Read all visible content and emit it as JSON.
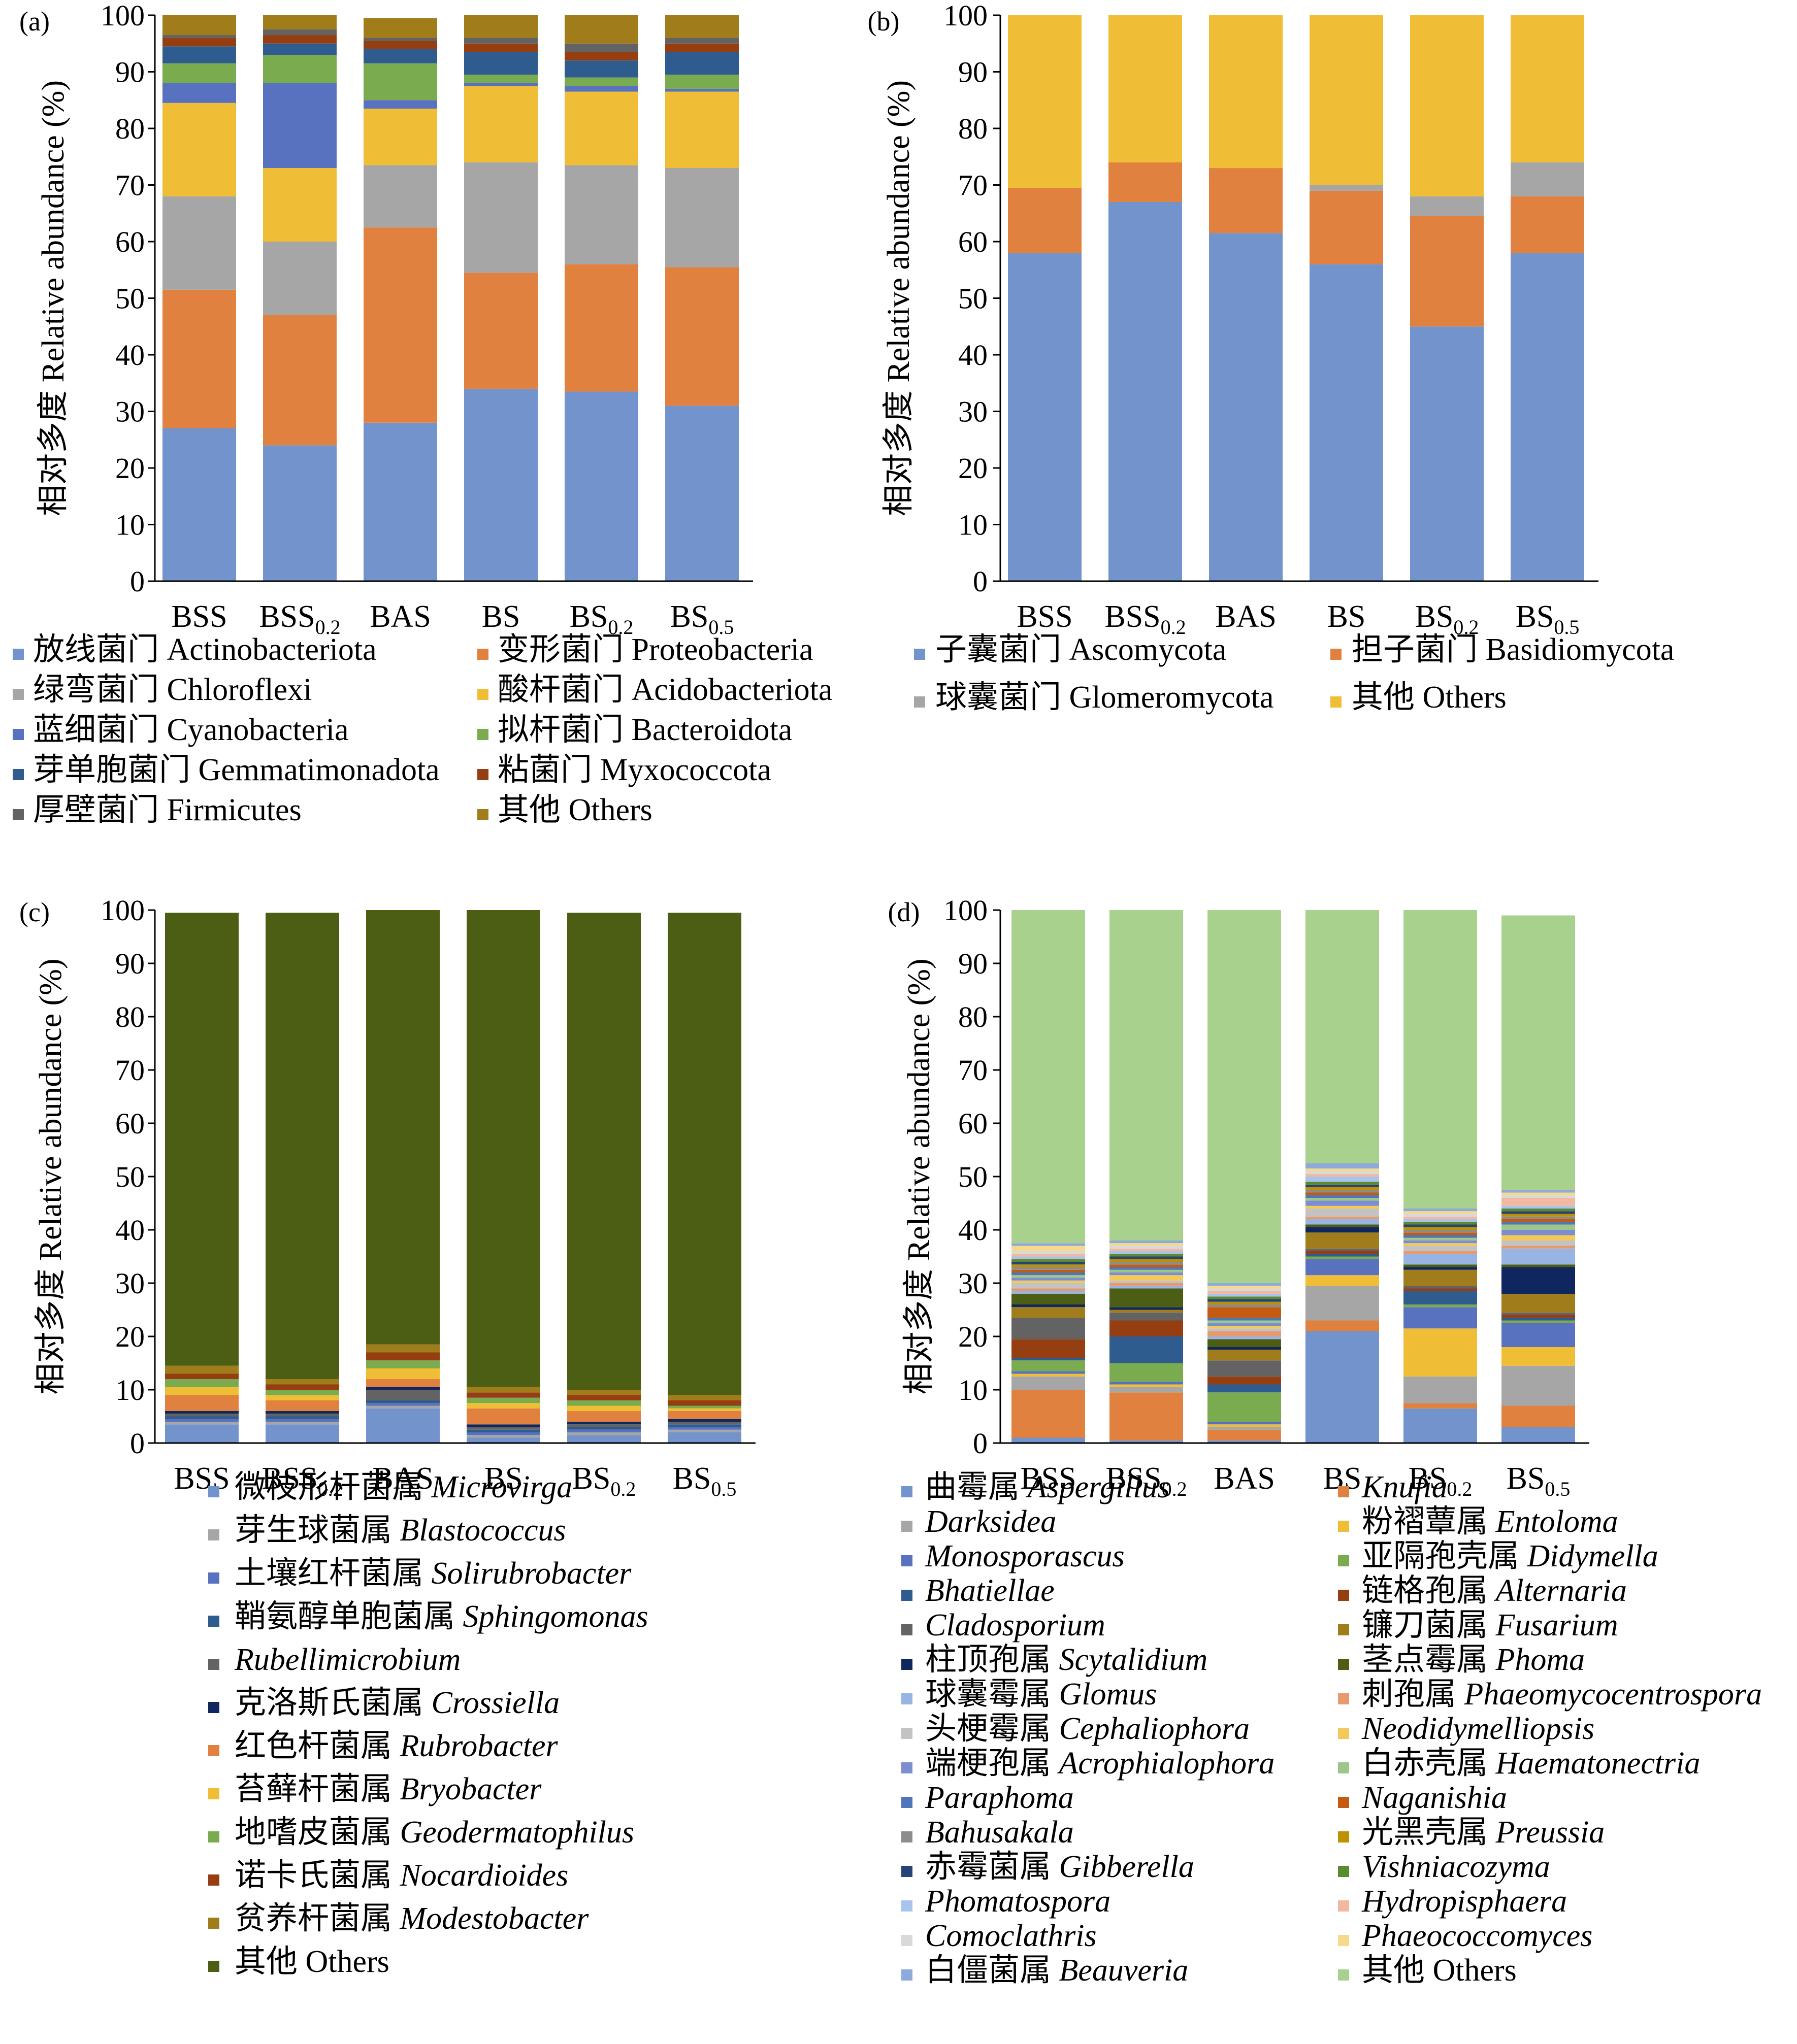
{
  "chart_data": [
    {
      "panel_label": "(a)",
      "type": "bar",
      "stacked": true,
      "categories": [
        "BSS",
        "BSS",
        "BAS",
        "BS",
        "BS",
        "BS"
      ],
      "category_subscripts": [
        "",
        "0.2",
        "",
        "",
        "0.2",
        "0.5"
      ],
      "ylabel": "相对多度 Relative abundance (%)",
      "ylim": [
        0,
        100
      ],
      "yticks": [
        "0",
        "10",
        "20",
        "30",
        "40",
        "50",
        "60",
        "70",
        "80",
        "90",
        "100"
      ],
      "legend_columns": 2,
      "series": [
        {
          "name": "放线菌门 Actinobacteriota",
          "color": "#7293cb",
          "values": [
            27,
            24,
            28,
            34,
            33.5,
            31
          ]
        },
        {
          "name": "变形菌门  Proteobacteria",
          "color": "#e1813f",
          "values": [
            24.5,
            23,
            34.5,
            20.5,
            22.5,
            24.5
          ]
        },
        {
          "name": "绿弯菌门  Chloroflexi",
          "color": "#a6a6a6",
          "values": [
            16.5,
            13,
            11,
            19.5,
            17.5,
            17.5
          ]
        },
        {
          "name": "酸杆菌门 Acidobacteriota",
          "color": "#f0bd36",
          "values": [
            16.5,
            13,
            10,
            13.5,
            13,
            13.5
          ]
        },
        {
          "name": "蓝细菌门 Cyanobacteria",
          "color": "#5872c0",
          "values": [
            3.5,
            15,
            1.5,
            0.5,
            1,
            0.5
          ]
        },
        {
          "name": "拟杆菌门 Bacteroidota",
          "color": "#7aab4f",
          "values": [
            3.5,
            5,
            6.5,
            1.5,
            1.5,
            2.5
          ]
        },
        {
          "name": "芽单胞菌门 Gemmatimonadota",
          "color": "#2f5c8f",
          "values": [
            3,
            2,
            2.5,
            4,
            3,
            4
          ]
        },
        {
          "name": "粘菌门 Myxococcota",
          "color": "#953e12",
          "values": [
            1.5,
            1.5,
            1.5,
            1.5,
            1.5,
            1.5
          ]
        },
        {
          "name": "厚壁菌门  Firmicutes",
          "color": "#636363",
          "values": [
            0.5,
            1,
            0.5,
            1,
            1.5,
            1
          ]
        },
        {
          "name": "其他 Others",
          "color": "#a07c1b",
          "values": [
            4,
            2.5,
            3.5,
            4,
            5,
            4
          ]
        }
      ]
    },
    {
      "panel_label": "(b)",
      "type": "bar",
      "stacked": true,
      "categories": [
        "BSS",
        "BSS",
        "BAS",
        "BS",
        "BS",
        "BS"
      ],
      "category_subscripts": [
        "",
        "0.2",
        "",
        "",
        "0.2",
        "0.5"
      ],
      "ylabel": "相对多度 Relative abundance (%)",
      "ylim": [
        0,
        100
      ],
      "yticks": [
        "0",
        "10",
        "20",
        "30",
        "40",
        "50",
        "60",
        "70",
        "80",
        "90",
        "100"
      ],
      "legend_columns": 2,
      "series": [
        {
          "name": "子囊菌门 Ascomycota",
          "color": "#7293cb",
          "values": [
            58,
            67,
            61.5,
            56,
            45,
            58
          ]
        },
        {
          "name": "担子菌门 Basidiomycota",
          "color": "#e1813f",
          "values": [
            11.5,
            7,
            11.5,
            13,
            19.5,
            10
          ]
        },
        {
          "name": "球囊菌门 Glomeromycota",
          "color": "#a6a6a6",
          "values": [
            0,
            0,
            0,
            1,
            3.5,
            6
          ]
        },
        {
          "name": "其他 Others",
          "color": "#f0bd36",
          "values": [
            30.5,
            26,
            27,
            30,
            32,
            26
          ]
        }
      ]
    },
    {
      "panel_label": "(c)",
      "type": "bar",
      "stacked": true,
      "categories": [
        "BSS",
        "BSS",
        "BAS",
        "BS",
        "BS",
        "BS"
      ],
      "category_subscripts": [
        "",
        "0.2",
        "",
        "",
        "0.2",
        "0.5"
      ],
      "ylabel": "相对多度 Relative abundance (%)",
      "ylim": [
        0,
        100
      ],
      "yticks": [
        "0",
        "10",
        "20",
        "30",
        "40",
        "50",
        "60",
        "70",
        "80",
        "90",
        "100"
      ],
      "legend_columns": 1,
      "series": [
        {
          "name": "微枝形杆菌属 ",
          "italic": "Microvirga",
          "color": "#7293cb",
          "values": [
            3.5,
            3.5,
            6.5,
            1,
            1.5,
            2
          ]
        },
        {
          "name": "芽生球菌属 ",
          "italic": "Blastococcus",
          "color": "#a6a6a6",
          "values": [
            0.5,
            0.5,
            0.5,
            0.5,
            0.5,
            0.5
          ]
        },
        {
          "name": "土壤红杆菌属 ",
          "italic": "Solirubrobacter",
          "color": "#5872c0",
          "values": [
            0.5,
            0.5,
            0.5,
            0.5,
            0.5,
            0.5
          ]
        },
        {
          "name": "鞘氨醇单胞菌属 ",
          "italic": "Sphingomonas",
          "color": "#2f5c8f",
          "values": [
            0.5,
            0.5,
            0.5,
            0.5,
            0.5,
            0.5
          ]
        },
        {
          "name": "",
          "italic": "Rubellimicrobium",
          "color": "#636363",
          "values": [
            0.5,
            0.5,
            2,
            0.5,
            0.5,
            0.5
          ]
        },
        {
          "name": "克洛斯氏菌属 ",
          "italic": "Crossiella",
          "color": "#10265e",
          "values": [
            0.5,
            0.5,
            0.5,
            0.5,
            0.5,
            0.5
          ]
        },
        {
          "name": "红色杆菌属 ",
          "italic": "Rubrobacter",
          "color": "#e1813f",
          "values": [
            3,
            2,
            1.5,
            3,
            2,
            1.5
          ]
        },
        {
          "name": "苔藓杆菌属 ",
          "italic": "Bryobacter",
          "color": "#f0bd36",
          "values": [
            1.5,
            1,
            2,
            1,
            1,
            0.5
          ]
        },
        {
          "name": "地嗜皮菌属 ",
          "italic": "Geodermatophilus",
          "color": "#7aab4f",
          "values": [
            1.5,
            1,
            1.5,
            1,
            1,
            0.5
          ]
        },
        {
          "name": "诺卡氏菌属 ",
          "italic": "Nocardioides",
          "color": "#953e12",
          "values": [
            1,
            1,
            1.5,
            1,
            1,
            1
          ]
        },
        {
          "name": "贫养杆菌属 ",
          "italic": "Modestobacter",
          "color": "#a07c1b",
          "values": [
            1.5,
            1,
            1.5,
            1,
            1,
            1
          ]
        },
        {
          "name": "其他 Others",
          "italic": "",
          "color": "#4b5e13",
          "values": [
            85,
            87.5,
            81.5,
            89.5,
            89.5,
            90.5
          ]
        }
      ]
    },
    {
      "panel_label": "(d)",
      "type": "bar",
      "stacked": true,
      "categories": [
        "BSS",
        "BSS",
        "BAS",
        "BS",
        "BS",
        "BS"
      ],
      "category_subscripts": [
        "",
        "0.2",
        "",
        "",
        "0.2",
        "0.5"
      ],
      "ylabel": "相对多度  Relative abundance (%)",
      "ylim": [
        0,
        100
      ],
      "yticks": [
        "0",
        "10",
        "20",
        "30",
        "40",
        "50",
        "60",
        "70",
        "80",
        "90",
        "100"
      ],
      "legend_columns": 2,
      "series": [
        {
          "name": "曲霉属 ",
          "italic": "Aspergillus",
          "color": "#7293cb",
          "values": [
            1,
            0.5,
            0.5,
            21,
            6.5,
            3
          ]
        },
        {
          "name": "",
          "italic": "Knufia",
          "color": "#e1813f",
          "values": [
            9,
            9,
            2,
            2,
            1,
            4
          ]
        },
        {
          "name": "",
          "italic": "Darksidea",
          "color": "#a6a6a6",
          "values": [
            2.5,
            1,
            0.5,
            6.5,
            5,
            7.5
          ]
        },
        {
          "name": "粉褶蕈属 ",
          "italic": "Entoloma",
          "color": "#f0bd36",
          "values": [
            0.5,
            0.5,
            0.5,
            2,
            9,
            3.5
          ]
        },
        {
          "name": "",
          "italic": "Monosporascus",
          "color": "#5872c0",
          "values": [
            0.5,
            0.5,
            0.5,
            3,
            4,
            4.5
          ]
        },
        {
          "name": "亚隔孢壳属 ",
          "italic": "Didymella",
          "color": "#7aab4f",
          "values": [
            2,
            3.5,
            5.5,
            0.5,
            0.5,
            0.5
          ]
        },
        {
          "name": "",
          "italic": "Bhatiellae",
          "color": "#2f5c8f",
          "values": [
            0.5,
            5,
            1.5,
            0.5,
            2.5,
            0.5
          ]
        },
        {
          "name": "链格孢属 ",
          "italic": "Alternaria",
          "color": "#953e12",
          "values": [
            3.5,
            3,
            1.5,
            0.5,
            0.5,
            0.5
          ]
        },
        {
          "name": "",
          "italic": "Cladosporium",
          "color": "#636363",
          "values": [
            4,
            1.5,
            3,
            0.5,
            0.5,
            0.5
          ]
        },
        {
          "name": "镰刀菌属 ",
          "italic": "Fusarium",
          "color": "#a07c1b",
          "values": [
            2,
            0.5,
            2,
            3,
            3,
            3.5
          ]
        },
        {
          "name": "柱顶孢属 ",
          "italic": "Scytalidium",
          "color": "#10265e",
          "values": [
            0.5,
            0.5,
            0.5,
            1,
            0.5,
            5
          ]
        },
        {
          "name": "茎点霉属 ",
          "italic": "Phoma",
          "color": "#4b5e13",
          "values": [
            2,
            3.5,
            1.5,
            0.5,
            0.5,
            0.5
          ]
        },
        {
          "name": "球囊霉属 ",
          "italic": "Glomus",
          "color": "#97b4e3",
          "values": [
            0.5,
            0.5,
            0.5,
            1,
            2,
            3
          ]
        },
        {
          "name": "刺孢属 ",
          "italic": "Phaeomycocentrospora",
          "color": "#e89a6e",
          "values": [
            0.5,
            0.5,
            1,
            0.5,
            0.5,
            0.5
          ]
        },
        {
          "name": "头梗霉属 ",
          "italic": "Cephaliophora",
          "color": "#c3c3c3",
          "values": [
            1,
            0.5,
            0.5,
            1.5,
            1,
            1
          ]
        },
        {
          "name": "",
          "italic": "Neodidymelliopsis",
          "color": "#f5c85a",
          "values": [
            0.5,
            1,
            0.5,
            0.5,
            0.5,
            1
          ]
        },
        {
          "name": "端梗孢属 ",
          "italic": "Acrophialophora",
          "color": "#7b8ed0",
          "values": [
            0.5,
            0.5,
            0.5,
            1,
            0.5,
            1
          ]
        },
        {
          "name": "白赤壳属 ",
          "italic": "Haematonectria",
          "color": "#9dc78a",
          "values": [
            0.5,
            0.5,
            0.5,
            0.5,
            0.5,
            1
          ]
        },
        {
          "name": "",
          "italic": "Paraphoma",
          "color": "#4e76b8",
          "values": [
            0.5,
            0.5,
            0.5,
            0.5,
            0.5,
            0.5
          ]
        },
        {
          "name": "",
          "italic": "Naganishia",
          "color": "#c55a11",
          "values": [
            0.5,
            0.5,
            2,
            0.5,
            0.5,
            0.5
          ]
        },
        {
          "name": "",
          "italic": "Bahusakala",
          "color": "#8c8c8c",
          "values": [
            0.5,
            0.5,
            0.5,
            0.5,
            0.5,
            0.5
          ]
        },
        {
          "name": "光黑壳属 ",
          "italic": "Preussia",
          "color": "#bf9000",
          "values": [
            0.5,
            0.5,
            0.5,
            0.5,
            0.5,
            0.5
          ]
        },
        {
          "name": "赤霉菌属  ",
          "italic": "Gibberella",
          "color": "#264478",
          "values": [
            0.5,
            0.5,
            0.5,
            0.5,
            0.5,
            0.5
          ]
        },
        {
          "name": "",
          "italic": "Vishniacozyma",
          "color": "#5e8a2e",
          "values": [
            0.5,
            0.5,
            0.5,
            0.5,
            0.5,
            0.5
          ]
        },
        {
          "name": "",
          "italic": "Phomatospora",
          "color": "#a9c4ec",
          "values": [
            0.5,
            0.5,
            0.5,
            1,
            0.5,
            0.5
          ]
        },
        {
          "name": "",
          "italic": "Hydropisphaera",
          "color": "#f2b8a0",
          "values": [
            0.5,
            0.5,
            0.5,
            0.5,
            0.5,
            1.5
          ]
        },
        {
          "name": "",
          "italic": "Comoclathris",
          "color": "#d9d9d9",
          "values": [
            0.5,
            0.5,
            0.5,
            0.5,
            0.5,
            0.5
          ]
        },
        {
          "name": "",
          "italic": "Phaeococcomyces",
          "color": "#f7d98a",
          "values": [
            1,
            0.5,
            0.5,
            0.5,
            0.5,
            0.5
          ]
        },
        {
          "name": "白僵菌属 ",
          "italic": "Beauveria",
          "color": "#8ea9db",
          "values": [
            0.5,
            0.5,
            0.5,
            1,
            0.5,
            0.5
          ]
        },
        {
          "name": "其他 Others",
          "italic": "",
          "color": "#a9d18e",
          "values": [
            62.5,
            65,
            74.5,
            51,
            60,
            51.5
          ]
        }
      ]
    }
  ]
}
